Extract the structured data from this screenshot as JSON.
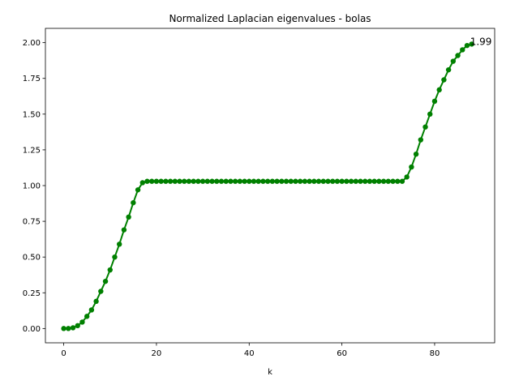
{
  "chart_data": {
    "type": "line",
    "title": "Normalized Laplacian eigenvalues - bolas",
    "xlabel": "k",
    "ylabel": "",
    "xlim": [
      -3.95,
      92.95
    ],
    "ylim": [
      -0.1,
      2.1
    ],
    "xticks": [
      0,
      20,
      40,
      60,
      80
    ],
    "xtick_labels": [
      "0",
      "20",
      "40",
      "60",
      "80"
    ],
    "yticks": [
      0.0,
      0.25,
      0.5,
      0.75,
      1.0,
      1.25,
      1.5,
      1.75,
      2.0
    ],
    "ytick_labels": [
      "0.00",
      "0.25",
      "0.50",
      "0.75",
      "1.00",
      "1.25",
      "1.50",
      "1.75",
      "2.00"
    ],
    "grid": false,
    "legend": "none",
    "series": [
      {
        "color": "#008000",
        "marker": "circle",
        "x": [
          0,
          1,
          2,
          3,
          4,
          5,
          6,
          7,
          8,
          9,
          10,
          11,
          12,
          13,
          14,
          15,
          16,
          17,
          18,
          19,
          20,
          21,
          22,
          23,
          24,
          25,
          26,
          27,
          28,
          29,
          30,
          31,
          32,
          33,
          34,
          35,
          36,
          37,
          38,
          39,
          40,
          41,
          42,
          43,
          44,
          45,
          46,
          47,
          48,
          49,
          50,
          51,
          52,
          53,
          54,
          55,
          56,
          57,
          58,
          59,
          60,
          61,
          62,
          63,
          64,
          65,
          66,
          67,
          68,
          69,
          70,
          71,
          72,
          73,
          74,
          75,
          76,
          77,
          78,
          79,
          80,
          81,
          82,
          83,
          84,
          85,
          86,
          87,
          88
        ],
        "y": [
          0.0,
          0.0,
          0.005,
          0.02,
          0.045,
          0.085,
          0.13,
          0.19,
          0.26,
          0.33,
          0.41,
          0.5,
          0.59,
          0.69,
          0.78,
          0.88,
          0.97,
          1.02,
          1.03,
          1.03,
          1.03,
          1.03,
          1.03,
          1.03,
          1.03,
          1.03,
          1.03,
          1.03,
          1.03,
          1.03,
          1.03,
          1.03,
          1.03,
          1.03,
          1.03,
          1.03,
          1.03,
          1.03,
          1.03,
          1.03,
          1.03,
          1.03,
          1.03,
          1.03,
          1.03,
          1.03,
          1.03,
          1.03,
          1.03,
          1.03,
          1.03,
          1.03,
          1.03,
          1.03,
          1.03,
          1.03,
          1.03,
          1.03,
          1.03,
          1.03,
          1.03,
          1.03,
          1.03,
          1.03,
          1.03,
          1.03,
          1.03,
          1.03,
          1.03,
          1.03,
          1.03,
          1.03,
          1.03,
          1.03,
          1.06,
          1.13,
          1.22,
          1.32,
          1.41,
          1.5,
          1.59,
          1.67,
          1.74,
          1.81,
          1.87,
          1.91,
          1.95,
          1.98,
          1.99
        ]
      }
    ],
    "annotations": [
      {
        "text": "1.99",
        "x": 88,
        "y": 1.99
      }
    ]
  }
}
